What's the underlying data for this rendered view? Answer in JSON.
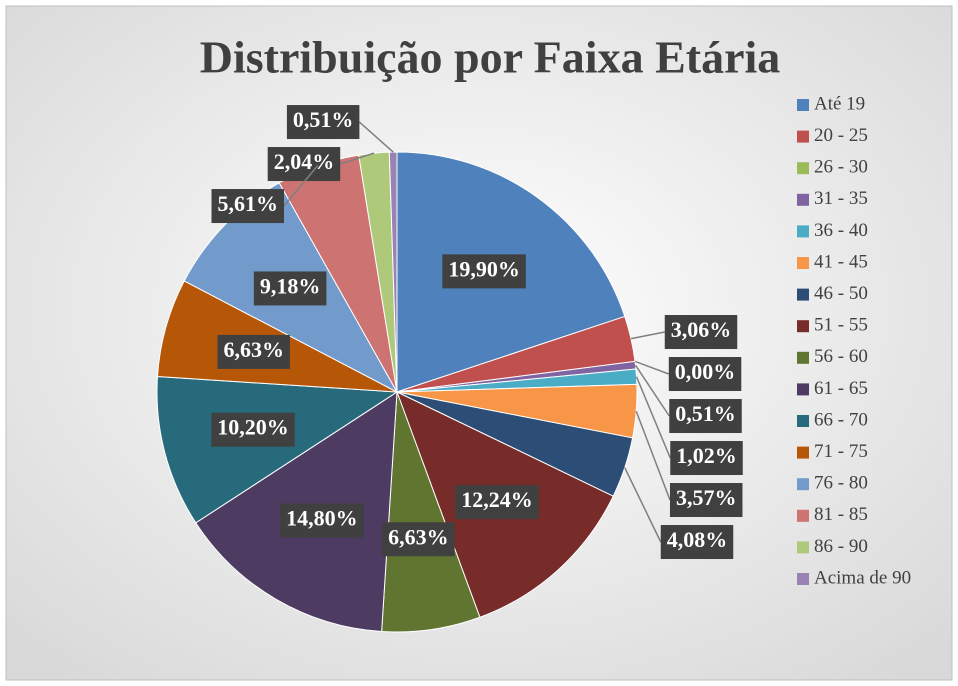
{
  "chart_data": {
    "type": "pie",
    "title": "Distribuição por Faixa Etária",
    "categories": [
      "Até 19",
      "20 - 25",
      "26 - 30",
      "31 - 35",
      "36 - 40",
      "41 - 45",
      "46 - 50",
      "51 - 55",
      "56 - 60",
      "61 - 65",
      "66 - 70",
      "71 - 75",
      "76 - 80",
      "81 - 85",
      "86 - 90",
      "Acima de 90"
    ],
    "values": [
      19.9,
      3.06,
      0.0,
      0.51,
      1.02,
      3.57,
      4.08,
      12.24,
      6.63,
      14.8,
      10.2,
      6.63,
      9.18,
      5.61,
      2.04,
      0.51
    ],
    "value_labels": [
      "19,90%",
      "3,06%",
      "0,00%",
      "0,51%",
      "1,02%",
      "3,57%",
      "4,08%",
      "12,24%",
      "6,63%",
      "14,80%",
      "10,20%",
      "6,63%",
      "9,18%",
      "5,61%",
      "2,04%",
      "0,51%"
    ],
    "colors": [
      "#4F81BD",
      "#C0504D",
      "#9BBB59",
      "#8064A2",
      "#4BACC6",
      "#F79646",
      "#2C4D75",
      "#772C2A",
      "#5F7530",
      "#4D3B62",
      "#276A7C",
      "#B65708",
      "#729ACA",
      "#CD7371",
      "#AFC97A",
      "#9983B5"
    ],
    "legend": "right"
  }
}
